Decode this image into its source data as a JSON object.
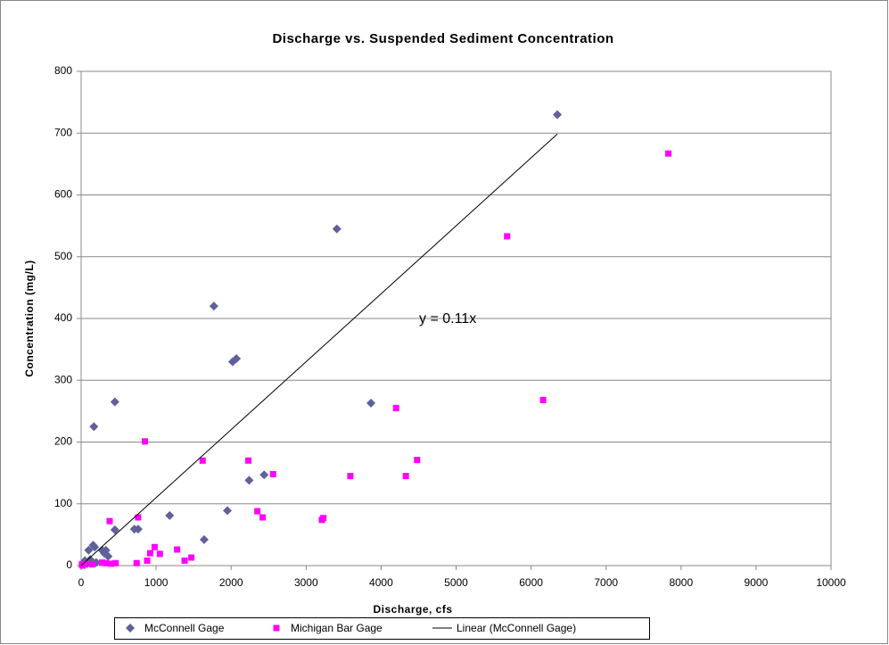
{
  "chart_data": {
    "type": "scatter",
    "title": "Discharge vs. Suspended Sediment Concentration",
    "x_label": "Discharge, cfs",
    "y_label": "Concentration (mg/L)",
    "xlim": [
      0,
      10000
    ],
    "xticks": [
      0,
      1000,
      2000,
      3000,
      4000,
      5000,
      6000,
      7000,
      8000,
      9000,
      10000
    ],
    "ylim": [
      0,
      800
    ],
    "yticks": [
      0,
      100,
      200,
      300,
      400,
      500,
      600,
      700,
      800
    ],
    "grid": true,
    "legend": "bottom",
    "annotation": "y = 0.11x",
    "series": [
      {
        "name": "McConnell Gage",
        "color": "#60609a",
        "marker": "diamond",
        "x": [
          6350,
          3410,
          1770,
          2020,
          2070,
          3865,
          450,
          170,
          1180,
          2440,
          2240,
          1950,
          1640,
          710,
          760,
          450,
          100,
          160,
          180,
          280,
          310,
          330,
          360,
          50,
          120,
          30,
          200,
          80
        ],
        "values": [
          730,
          545,
          420,
          330,
          335,
          263,
          265,
          225,
          81,
          147,
          138,
          89,
          42,
          59,
          59,
          58,
          25,
          33,
          30,
          25,
          20,
          25,
          15,
          8,
          10,
          5,
          5,
          3
        ]
      },
      {
        "name": "Michigan Bar Gage",
        "color": "#ff00ff",
        "marker": "square",
        "x": [
          7830,
          5680,
          6160,
          4200,
          4480,
          4330,
          3590,
          2560,
          2230,
          1620,
          850,
          760,
          380,
          2350,
          2420,
          3210,
          3230,
          980,
          1280,
          1050,
          920,
          1470,
          1380,
          880,
          740,
          460,
          400,
          330,
          280,
          150,
          60,
          20,
          10
        ],
        "values": [
          667,
          533,
          268,
          255,
          171,
          145,
          145,
          148,
          170,
          170,
          201,
          78,
          72,
          88,
          78,
          74,
          77,
          30,
          26,
          19,
          20,
          13,
          8,
          8,
          4,
          4,
          3,
          4,
          5,
          2,
          3,
          0,
          2
        ]
      },
      {
        "name": "Linear (McConnell Gage)",
        "color": "#000000",
        "marker": "line",
        "x": [
          0,
          6350
        ],
        "values": [
          0,
          698.5
        ]
      }
    ]
  }
}
